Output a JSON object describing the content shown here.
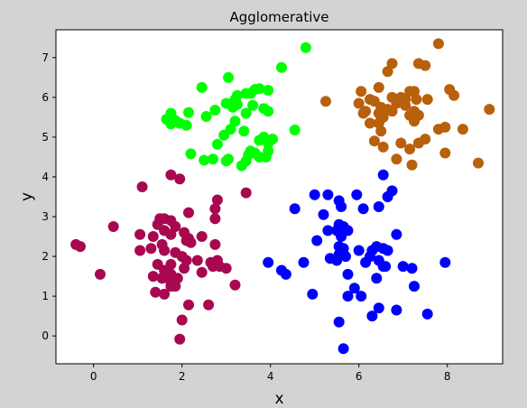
{
  "chart_data": {
    "type": "scatter",
    "title": "Agglomerative",
    "xlabel": "x",
    "ylabel": "y",
    "xlim": [
      -0.85,
      9.25
    ],
    "ylim": [
      -0.7,
      7.7
    ],
    "xticks": [
      0,
      2,
      4,
      6,
      8
    ],
    "yticks": [
      0,
      1,
      2,
      3,
      4,
      5,
      6,
      7
    ],
    "grid": false,
    "legend": "none",
    "background": "#d3d3d3",
    "plot_background": "#ffffff",
    "series": [
      {
        "color": "#00ff00",
        "points": [
          [
            4.8,
            7.25
          ],
          [
            4.25,
            6.75
          ],
          [
            3.05,
            6.5
          ],
          [
            2.45,
            6.25
          ],
          [
            3.75,
            6.22
          ],
          [
            3.65,
            6.2
          ],
          [
            3.95,
            6.18
          ],
          [
            3.45,
            6.1
          ],
          [
            3.55,
            6.1
          ],
          [
            3.25,
            6.05
          ],
          [
            3.2,
            5.95
          ],
          [
            3.0,
            5.85
          ],
          [
            3.25,
            5.82
          ],
          [
            3.6,
            5.8
          ],
          [
            3.15,
            5.75
          ],
          [
            3.85,
            5.72
          ],
          [
            3.95,
            5.65
          ],
          [
            2.75,
            5.68
          ],
          [
            2.15,
            5.62
          ],
          [
            3.45,
            5.6
          ],
          [
            1.75,
            5.6
          ],
          [
            2.55,
            5.52
          ],
          [
            1.65,
            5.45
          ],
          [
            1.85,
            5.42
          ],
          [
            1.95,
            5.35
          ],
          [
            1.75,
            5.33
          ],
          [
            2.1,
            5.3
          ],
          [
            3.2,
            5.4
          ],
          [
            3.1,
            5.2
          ],
          [
            3.4,
            5.15
          ],
          [
            2.95,
            5.05
          ],
          [
            4.55,
            5.18
          ],
          [
            3.85,
            5.0
          ],
          [
            3.75,
            4.92
          ],
          [
            4.05,
            4.95
          ],
          [
            3.95,
            4.85
          ],
          [
            2.8,
            4.82
          ],
          [
            3.55,
            4.65
          ],
          [
            3.95,
            4.65
          ],
          [
            3.65,
            4.6
          ],
          [
            2.2,
            4.58
          ],
          [
            3.5,
            4.55
          ],
          [
            3.75,
            4.5
          ],
          [
            3.9,
            4.5
          ],
          [
            3.05,
            4.45
          ],
          [
            2.5,
            4.42
          ],
          [
            2.7,
            4.45
          ],
          [
            3.0,
            4.4
          ],
          [
            3.45,
            4.4
          ],
          [
            3.35,
            4.28
          ]
        ]
      },
      {
        "color": "#b8600c",
        "points": [
          [
            7.8,
            7.35
          ],
          [
            7.35,
            6.85
          ],
          [
            6.75,
            6.85
          ],
          [
            7.5,
            6.8
          ],
          [
            6.65,
            6.65
          ],
          [
            6.45,
            6.25
          ],
          [
            8.05,
            6.2
          ],
          [
            6.05,
            6.15
          ],
          [
            7.15,
            6.15
          ],
          [
            7.25,
            6.15
          ],
          [
            8.15,
            6.05
          ],
          [
            6.75,
            6.0
          ],
          [
            6.95,
            6.0
          ],
          [
            7.05,
            5.95
          ],
          [
            6.25,
            5.95
          ],
          [
            6.35,
            5.9
          ],
          [
            7.55,
            5.95
          ],
          [
            7.3,
            5.95
          ],
          [
            5.25,
            5.9
          ],
          [
            6.0,
            5.85
          ],
          [
            6.85,
            5.85
          ],
          [
            7.05,
            5.8
          ],
          [
            6.5,
            5.75
          ],
          [
            6.65,
            5.7
          ],
          [
            7.25,
            5.65
          ],
          [
            6.15,
            5.65
          ],
          [
            6.75,
            5.65
          ],
          [
            6.45,
            5.6
          ],
          [
            8.95,
            5.7
          ],
          [
            6.1,
            5.6
          ],
          [
            7.15,
            5.55
          ],
          [
            7.35,
            5.55
          ],
          [
            6.55,
            5.5
          ],
          [
            7.25,
            5.4
          ],
          [
            6.25,
            5.35
          ],
          [
            6.45,
            5.35
          ],
          [
            8.35,
            5.2
          ],
          [
            7.8,
            5.2
          ],
          [
            7.95,
            5.25
          ],
          [
            6.5,
            5.15
          ],
          [
            7.5,
            4.95
          ],
          [
            6.35,
            4.9
          ],
          [
            7.35,
            4.85
          ],
          [
            6.95,
            4.85
          ],
          [
            6.55,
            4.75
          ],
          [
            7.15,
            4.7
          ],
          [
            7.95,
            4.6
          ],
          [
            6.85,
            4.45
          ],
          [
            8.7,
            4.35
          ],
          [
            7.2,
            4.3
          ]
        ]
      },
      {
        "color": "#a8084f",
        "points": [
          [
            1.75,
            4.05
          ],
          [
            1.95,
            3.95
          ],
          [
            1.1,
            3.75
          ],
          [
            3.45,
            3.6
          ],
          [
            2.8,
            3.42
          ],
          [
            2.75,
            3.2
          ],
          [
            2.15,
            3.1
          ],
          [
            1.5,
            2.95
          ],
          [
            1.6,
            2.95
          ],
          [
            1.75,
            2.9
          ],
          [
            2.75,
            2.95
          ],
          [
            0.45,
            2.75
          ],
          [
            1.45,
            2.8
          ],
          [
            1.85,
            2.75
          ],
          [
            1.6,
            2.65
          ],
          [
            1.75,
            2.55
          ],
          [
            2.05,
            2.6
          ],
          [
            1.05,
            2.55
          ],
          [
            2.45,
            2.5
          ],
          [
            2.15,
            2.45
          ],
          [
            1.35,
            2.5
          ],
          [
            2.1,
            2.4
          ],
          [
            2.2,
            2.35
          ],
          [
            1.55,
            2.3
          ],
          [
            -0.4,
            2.3
          ],
          [
            2.75,
            2.3
          ],
          [
            -0.3,
            2.25
          ],
          [
            1.3,
            2.2
          ],
          [
            1.05,
            2.15
          ],
          [
            1.6,
            2.15
          ],
          [
            1.85,
            2.1
          ],
          [
            2.0,
            2.0
          ],
          [
            2.1,
            1.9
          ],
          [
            2.35,
            1.9
          ],
          [
            2.65,
            1.85
          ],
          [
            2.8,
            1.9
          ],
          [
            1.45,
            1.8
          ],
          [
            1.75,
            1.8
          ],
          [
            2.85,
            1.75
          ],
          [
            2.7,
            1.75
          ],
          [
            3.0,
            1.7
          ],
          [
            2.05,
            1.7
          ],
          [
            1.6,
            1.65
          ],
          [
            0.15,
            1.55
          ],
          [
            1.75,
            1.55
          ],
          [
            2.45,
            1.6
          ],
          [
            1.35,
            1.5
          ],
          [
            1.55,
            1.45
          ],
          [
            1.9,
            1.45
          ],
          [
            1.75,
            1.35
          ],
          [
            1.75,
            1.25
          ],
          [
            3.2,
            1.28
          ],
          [
            1.85,
            1.25
          ],
          [
            1.4,
            1.1
          ],
          [
            1.6,
            1.05
          ],
          [
            2.15,
            0.78
          ],
          [
            2.6,
            0.78
          ],
          [
            2.0,
            0.4
          ],
          [
            1.95,
            -0.08
          ]
        ]
      },
      {
        "color": "#0000ff",
        "points": [
          [
            6.55,
            4.05
          ],
          [
            6.75,
            3.65
          ],
          [
            6.65,
            3.5
          ],
          [
            5.95,
            3.55
          ],
          [
            5.3,
            3.55
          ],
          [
            5.0,
            3.55
          ],
          [
            5.55,
            3.4
          ],
          [
            5.6,
            3.25
          ],
          [
            4.55,
            3.2
          ],
          [
            6.1,
            3.2
          ],
          [
            6.45,
            3.25
          ],
          [
            5.2,
            3.05
          ],
          [
            5.55,
            2.8
          ],
          [
            5.65,
            2.75
          ],
          [
            5.3,
            2.65
          ],
          [
            5.5,
            2.65
          ],
          [
            5.75,
            2.65
          ],
          [
            5.05,
            2.4
          ],
          [
            5.6,
            2.5
          ],
          [
            6.85,
            2.55
          ],
          [
            5.55,
            2.25
          ],
          [
            5.65,
            2.2
          ],
          [
            6.4,
            2.25
          ],
          [
            6.55,
            2.2
          ],
          [
            6.3,
            2.15
          ],
          [
            6.65,
            2.15
          ],
          [
            6.0,
            2.15
          ],
          [
            5.55,
            2.05
          ],
          [
            5.65,
            2.05
          ],
          [
            6.25,
            2.0
          ],
          [
            6.45,
            1.9
          ],
          [
            5.35,
            1.95
          ],
          [
            5.7,
            2.0
          ],
          [
            5.5,
            1.9
          ],
          [
            6.15,
            1.85
          ],
          [
            4.75,
            1.85
          ],
          [
            6.55,
            1.75
          ],
          [
            3.95,
            1.85
          ],
          [
            7.95,
            1.85
          ],
          [
            7.0,
            1.75
          ],
          [
            7.2,
            1.7
          ],
          [
            4.25,
            1.65
          ],
          [
            6.6,
            1.75
          ],
          [
            4.35,
            1.55
          ],
          [
            5.75,
            1.55
          ],
          [
            6.4,
            1.45
          ],
          [
            7.25,
            1.25
          ],
          [
            5.9,
            1.2
          ],
          [
            4.95,
            1.05
          ],
          [
            5.75,
            1.0
          ],
          [
            6.05,
            1.0
          ],
          [
            6.45,
            0.7
          ],
          [
            6.85,
            0.65
          ],
          [
            6.3,
            0.5
          ],
          [
            7.55,
            0.55
          ],
          [
            5.55,
            0.35
          ],
          [
            5.65,
            -0.32
          ]
        ]
      }
    ]
  }
}
